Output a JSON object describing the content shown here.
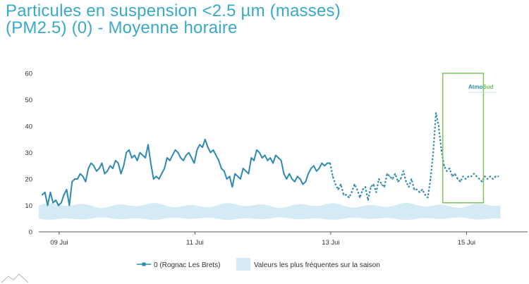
{
  "chart_data": {
    "type": "line",
    "title": "Particules en suspension <2.5 µm (masses)\n(PM2.5) (0) - Moyenne horaire",
    "xlabel": "",
    "ylabel": "",
    "ylim": [
      0,
      60
    ],
    "yticks": [
      0,
      10,
      20,
      30,
      40,
      50,
      60
    ],
    "xlim": [
      -0.3,
      6.9
    ],
    "xticks": [
      {
        "pos": 0,
        "label": "09 Jui"
      },
      {
        "pos": 2,
        "label": "11 Jui"
      },
      {
        "pos": 4,
        "label": "13 Jui"
      },
      {
        "pos": 6,
        "label": "15 Jui"
      }
    ],
    "grid": false,
    "legend_position": "bottom-center",
    "series": [
      {
        "name": "0 (Rognac Les Brets)",
        "color": "#2f8ab0",
        "x": [
          -0.25,
          -0.21,
          -0.17,
          -0.13,
          -0.09,
          -0.05,
          -0.01,
          0.03,
          0.07,
          0.11,
          0.15,
          0.19,
          0.23,
          0.27,
          0.31,
          0.35,
          0.39,
          0.43,
          0.47,
          0.51,
          0.55,
          0.59,
          0.63,
          0.67,
          0.71,
          0.75,
          0.79,
          0.83,
          0.87,
          0.91,
          0.95,
          0.99,
          1.03,
          1.07,
          1.11,
          1.15,
          1.19,
          1.23,
          1.27,
          1.31,
          1.35,
          1.39,
          1.43,
          1.47,
          1.51,
          1.55,
          1.59,
          1.63,
          1.67,
          1.71,
          1.75,
          1.79,
          1.83,
          1.87,
          1.91,
          1.95,
          1.99,
          2.03,
          2.07,
          2.11,
          2.15,
          2.19,
          2.23,
          2.27,
          2.31,
          2.35,
          2.39,
          2.43,
          2.47,
          2.51,
          2.55,
          2.59,
          2.63,
          2.67,
          2.71,
          2.75,
          2.79,
          2.83,
          2.87,
          2.91,
          2.95,
          2.99,
          3.03,
          3.07,
          3.11,
          3.15,
          3.19,
          3.23,
          3.27,
          3.31,
          3.35,
          3.39,
          3.43,
          3.47,
          3.51,
          3.55,
          3.59,
          3.63,
          3.67,
          3.71,
          3.75,
          3.79,
          3.83,
          3.87,
          3.91,
          3.95,
          3.99
        ],
        "y": [
          14,
          15,
          10,
          15,
          11,
          12,
          10,
          11,
          14,
          16,
          10,
          19,
          20,
          20,
          22,
          21,
          19,
          24,
          26,
          25,
          23,
          24,
          26,
          22,
          23,
          25,
          24,
          27,
          26,
          22,
          25,
          30,
          31,
          28,
          29,
          27,
          30,
          29,
          28,
          33,
          26,
          20,
          21,
          20,
          22,
          24,
          28,
          27,
          29,
          31,
          30,
          28,
          27,
          29,
          30,
          28,
          26,
          31,
          33,
          32,
          35,
          32,
          30,
          31,
          29,
          27,
          24,
          23,
          20,
          21,
          17,
          22,
          21,
          20,
          24,
          23,
          22,
          28,
          27,
          31,
          30,
          28,
          29,
          27,
          28,
          26,
          29,
          28,
          27,
          22,
          20,
          22,
          20,
          19,
          21,
          20,
          18,
          19,
          22,
          24,
          25,
          23,
          24,
          26,
          25,
          26,
          26
        ],
        "dashed": false
      },
      {
        "name": "0 (Rognac Les Brets)",
        "color": "#2f8ab0",
        "x": [
          3.99,
          4.03,
          4.07,
          4.11,
          4.15,
          4.19,
          4.23,
          4.27,
          4.31,
          4.35,
          4.39,
          4.43,
          4.47,
          4.51,
          4.55,
          4.59,
          4.63,
          4.67,
          4.71,
          4.75,
          4.79,
          4.83,
          4.87,
          4.91,
          4.95,
          4.99,
          5.03,
          5.07,
          5.11,
          5.15,
          5.19,
          5.23,
          5.27,
          5.31,
          5.35,
          5.39,
          5.43,
          5.47,
          5.51,
          5.55,
          5.59,
          5.63,
          5.67,
          5.71,
          5.75,
          5.79,
          5.83,
          5.87,
          5.91,
          5.95,
          5.99,
          6.03,
          6.07,
          6.11,
          6.15,
          6.19,
          6.23,
          6.27,
          6.31,
          6.35,
          6.39,
          6.43,
          6.47
        ],
        "y": [
          26,
          21,
          18,
          16,
          18,
          14,
          14,
          13,
          15,
          18,
          16,
          13,
          16,
          17,
          12,
          17,
          18,
          15,
          20,
          18,
          17,
          22,
          21,
          20,
          22,
          19,
          20,
          23,
          19,
          17,
          20,
          16,
          16,
          15,
          16,
          14,
          13,
          20,
          30,
          45,
          40,
          31,
          25,
          23,
          24,
          21,
          22,
          20,
          19,
          21,
          20,
          21,
          21,
          22,
          21,
          20,
          19,
          21,
          20,
          21,
          20,
          21,
          21
        ],
        "dashed": true
      }
    ],
    "band": {
      "name": "Valeurs les plus fréquentes sur la saison",
      "color": "#d4ebf6",
      "x_start": -0.3,
      "x_end": 6.5,
      "low": 5,
      "high": 10
    },
    "highlight_box": {
      "x_start": 5.65,
      "x_end": 6.25,
      "y_low": 11,
      "y_high": 60,
      "color": "#7cc35a"
    }
  },
  "legend": {
    "series_label": "0 (Rognac Les Brets)",
    "band_label": "Valeurs les plus fréquentes sur la saison"
  },
  "logo": {
    "name": "AtmoSud",
    "text_a": "Atmo",
    "text_b": "Sud"
  }
}
